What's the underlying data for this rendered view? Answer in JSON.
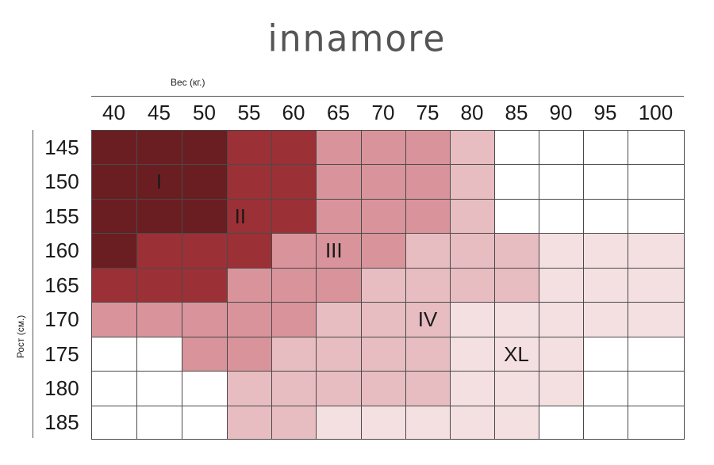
{
  "brand": "innamore",
  "chart_data": {
    "type": "heatmap",
    "xlabel": "Вес (кг.)",
    "ylabel": "Рост (см.)",
    "x": [
      "40",
      "45",
      "50",
      "55",
      "60",
      "65",
      "70",
      "75",
      "80",
      "85",
      "90",
      "95",
      "100"
    ],
    "y": [
      "145",
      "150",
      "155",
      "160",
      "165",
      "170",
      "175",
      "180",
      "185"
    ],
    "levels": [
      {
        "name": "",
        "color": "#ffffff"
      },
      {
        "name": "I",
        "color": "#6b1e22"
      },
      {
        "name": "II",
        "color": "#9b3036"
      },
      {
        "name": "III",
        "color": "#d8949a"
      },
      {
        "name": "IV",
        "color": "#e8bdc1"
      },
      {
        "name": "XL",
        "color": "#f4dfe1"
      }
    ],
    "grid": [
      [
        1,
        1,
        1,
        2,
        2,
        3,
        3,
        3,
        4,
        0,
        0,
        0,
        0
      ],
      [
        1,
        1,
        1,
        2,
        2,
        3,
        3,
        3,
        4,
        0,
        0,
        0,
        0
      ],
      [
        1,
        1,
        1,
        2,
        2,
        3,
        3,
        3,
        4,
        0,
        0,
        0,
        0
      ],
      [
        1,
        2,
        2,
        2,
        3,
        3,
        3,
        4,
        4,
        4,
        5,
        5,
        5
      ],
      [
        2,
        2,
        2,
        3,
        3,
        3,
        4,
        4,
        4,
        4,
        5,
        5,
        5
      ],
      [
        3,
        3,
        3,
        3,
        3,
        4,
        4,
        4,
        5,
        5,
        5,
        5,
        5
      ],
      [
        0,
        0,
        3,
        3,
        4,
        4,
        4,
        4,
        5,
        5,
        5,
        0,
        0
      ],
      [
        0,
        0,
        0,
        4,
        4,
        4,
        4,
        4,
        5,
        5,
        5,
        0,
        0
      ],
      [
        0,
        0,
        0,
        4,
        4,
        5,
        5,
        5,
        5,
        5,
        0,
        0,
        0
      ]
    ],
    "zone_labels": [
      {
        "text": "I",
        "col": 1.5,
        "row": 1.5
      },
      {
        "text": "II",
        "col": 3.3,
        "row": 2.5
      },
      {
        "text": "III",
        "col": 5.4,
        "row": 3.5
      },
      {
        "text": "IV",
        "col": 7.5,
        "row": 5.5
      },
      {
        "text": "XL",
        "col": 9.5,
        "row": 6.5
      }
    ]
  }
}
